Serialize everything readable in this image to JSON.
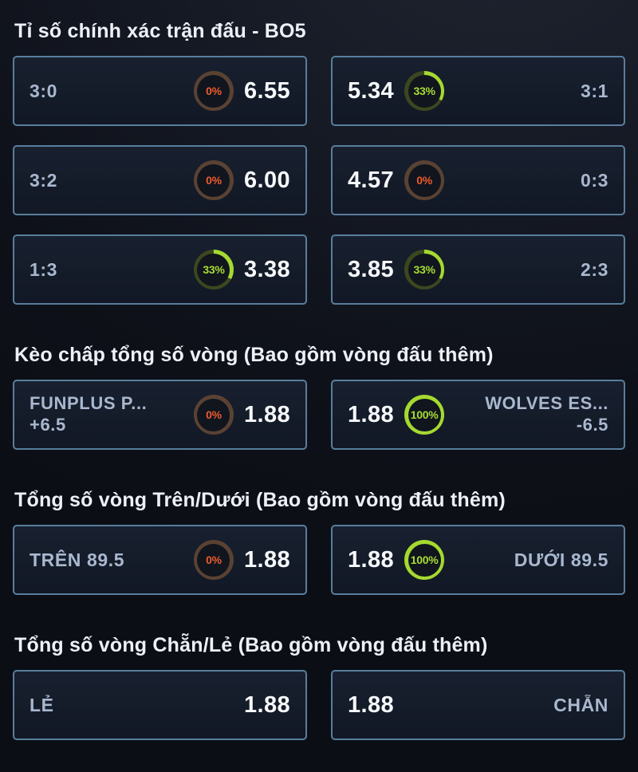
{
  "colors": {
    "page_background": "#0e1119",
    "cell_border": "#587e9c",
    "cell_background": "#141b28",
    "label_text": "#a9b8cf",
    "odds_text": "#f6f8fb",
    "title_text": "#edf1f7",
    "ring_orange": "#ee5b2d",
    "ring_orange_track": "#5a4233",
    "ring_green": "#a5d930",
    "ring_green_track": "#3c471f"
  },
  "sections": [
    {
      "title": "Tỉ số chính xác trận đấu - BO5",
      "cells": [
        {
          "label": "3:0",
          "odds": "6.55",
          "ring": {
            "pct": 0,
            "label": "0%",
            "color": "#ee5b2d",
            "track": "#5a4233",
            "text": "#ee5b2d"
          }
        },
        {
          "label": "3:1",
          "odds": "5.34",
          "ring": {
            "pct": 33,
            "label": "33%",
            "color": "#a5d930",
            "track": "#3c471f",
            "text": "#a8dc33"
          }
        },
        {
          "label": "3:2",
          "odds": "6.00",
          "ring": {
            "pct": 0,
            "label": "0%",
            "color": "#ee5b2d",
            "track": "#5a4233",
            "text": "#ee5b2d"
          }
        },
        {
          "label": "0:3",
          "odds": "4.57",
          "ring": {
            "pct": 0,
            "label": "0%",
            "color": "#ee5b2d",
            "track": "#5a4233",
            "text": "#ee5b2d"
          }
        },
        {
          "label": "1:3",
          "odds": "3.38",
          "ring": {
            "pct": 33,
            "label": "33%",
            "color": "#a5d930",
            "track": "#3c471f",
            "text": "#a8dc33"
          }
        },
        {
          "label": "2:3",
          "odds": "3.85",
          "ring": {
            "pct": 33,
            "label": "33%",
            "color": "#a5d930",
            "track": "#3c471f",
            "text": "#a8dc33"
          }
        }
      ]
    },
    {
      "title": "Kèo chấp tổng số vòng (Bao gồm vòng đấu thêm)",
      "cells": [
        {
          "label": "FUNPLUS P...",
          "sublabel": "+6.5",
          "odds": "1.88",
          "ring": {
            "pct": 0,
            "label": "0%",
            "color": "#ee5b2d",
            "track": "#5a4233",
            "text": "#ee5b2d"
          }
        },
        {
          "label": "WOLVES ES...",
          "sublabel": "-6.5",
          "odds": "1.88",
          "ring": {
            "pct": 100,
            "label": "100%",
            "color": "#a5d930",
            "track": "#3c471f",
            "text": "#a8dc33"
          }
        }
      ]
    },
    {
      "title": "Tổng số vòng Trên/Dưới (Bao gồm vòng đấu thêm)",
      "cells": [
        {
          "label": "TRÊN 89.5",
          "odds": "1.88",
          "ring": {
            "pct": 0,
            "label": "0%",
            "color": "#ee5b2d",
            "track": "#5a4233",
            "text": "#ee5b2d"
          }
        },
        {
          "label": "DƯỚI 89.5",
          "odds": "1.88",
          "ring": {
            "pct": 100,
            "label": "100%",
            "color": "#a5d930",
            "track": "#3c471f",
            "text": "#a8dc33"
          }
        }
      ]
    },
    {
      "title": "Tổng số vòng Chẵn/Lẻ (Bao gồm vòng đấu thêm)",
      "cells": [
        {
          "label": "LẺ",
          "odds": "1.88"
        },
        {
          "label": "CHẴN",
          "odds": "1.88"
        }
      ]
    }
  ]
}
